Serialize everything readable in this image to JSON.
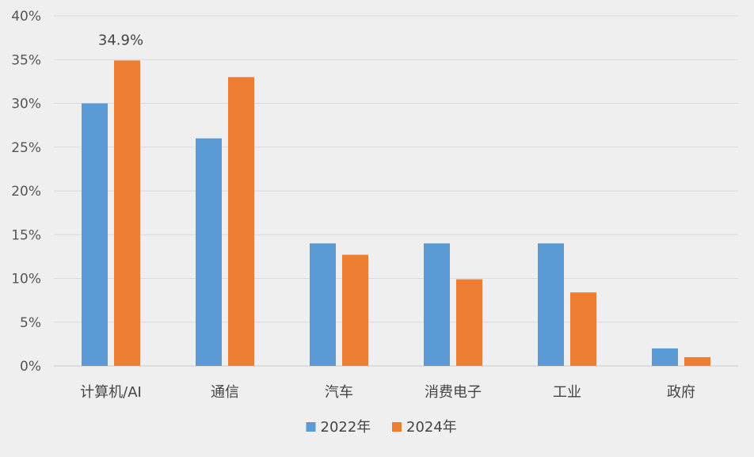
{
  "chart_data": {
    "type": "bar",
    "categories": [
      "计算机/AI",
      "通信",
      "汽车",
      "消费电子",
      "工业",
      "政府"
    ],
    "series": [
      {
        "name": "2022年",
        "values": [
          30,
          26,
          14,
          14,
          14,
          2
        ],
        "color": "#5b9bd5"
      },
      {
        "name": "2024年",
        "values": [
          34.9,
          33,
          12.7,
          9.9,
          8.4,
          1
        ],
        "color": "#ed7d31"
      }
    ],
    "y_ticks": [
      "0%",
      "5%",
      "10%",
      "15%",
      "20%",
      "25%",
      "30%",
      "35%",
      "40%"
    ],
    "ylim": [
      0,
      40
    ],
    "grid": true,
    "legend_position": "bottom-center",
    "annotations": [
      {
        "text": "34.9%",
        "category_index": 0,
        "series_index": 1
      }
    ]
  }
}
